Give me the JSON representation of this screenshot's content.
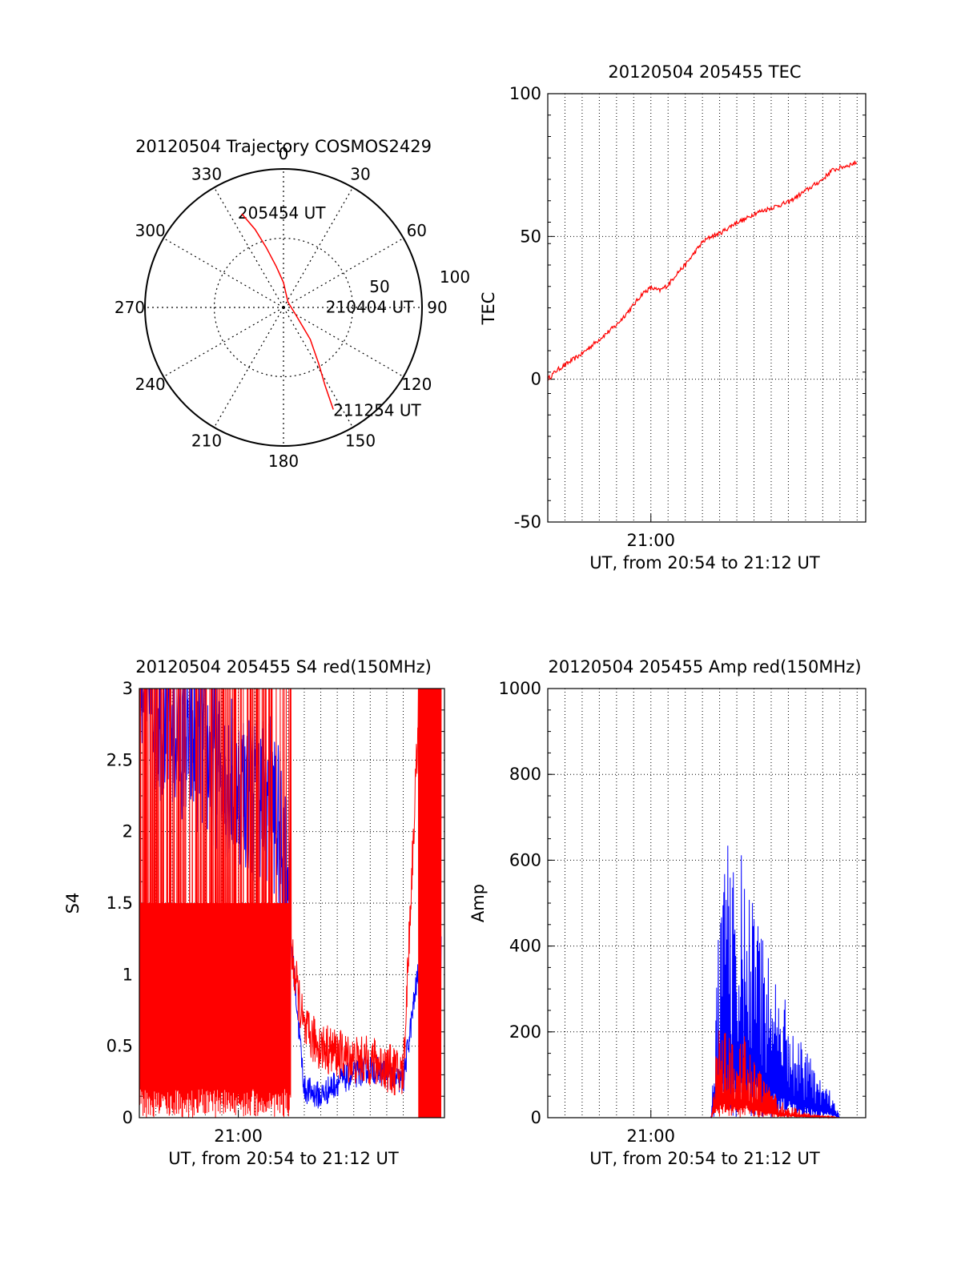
{
  "figure": {
    "colors": {
      "red": "#ff0000",
      "blue": "#0000ff",
      "axis": "#000000",
      "grid": "#000000",
      "background": "#ffffff"
    }
  },
  "chart_data": [
    {
      "id": "trajectory",
      "type": "scatter",
      "projection": "polar",
      "title": "20120504 Trajectory COSMOS2429",
      "azimuth_labels": [
        "0",
        "30",
        "60",
        "90",
        "120",
        "150",
        "180",
        "210",
        "240",
        "270",
        "300",
        "330"
      ],
      "radius_labels": [
        "50",
        "100"
      ],
      "radius_max": 100,
      "grid": true,
      "color": "#ff0000",
      "trajectory_az_r": [
        [
          336,
          74
        ],
        [
          340,
          60
        ],
        [
          344,
          45
        ],
        [
          350,
          30
        ],
        [
          0,
          18
        ],
        [
          40,
          5
        ],
        [
          120,
          10
        ],
        [
          140,
          30
        ],
        [
          148,
          48
        ],
        [
          152,
          64
        ],
        [
          154,
          82
        ]
      ],
      "annotations": [
        {
          "text": "205454 UT",
          "az": 336,
          "r": 74
        },
        {
          "text": "210404 UT",
          "az": 110,
          "r": 14
        },
        {
          "text": "211254 UT",
          "az": 154,
          "r": 82
        }
      ]
    },
    {
      "id": "tec",
      "type": "line",
      "title": "20120504 205455 TEC",
      "ylabel": "TEC",
      "xlabel": "UT, from 20:54 to 21:12 UT",
      "x_unit": "minutes after 20:54 UT",
      "xlim": [
        0,
        18.5
      ],
      "x_ticks": [
        {
          "value": 6,
          "label": "21:00"
        }
      ],
      "ylim": [
        -50,
        100
      ],
      "y_ticks": [
        -50,
        0,
        50,
        100
      ],
      "grid": true,
      "series": [
        {
          "color": "#ff0000",
          "x": [
            0.0,
            0.5,
            1.0,
            1.5,
            2.0,
            3.0,
            4.0,
            5.0,
            5.5,
            6.0,
            6.5,
            7.0,
            7.5,
            8.0,
            8.5,
            9.0,
            9.5,
            10.0,
            10.5,
            11.0,
            11.5,
            12.0,
            13.0,
            14.0,
            15.0,
            16.0,
            16.5,
            17.0,
            17.5,
            18.0
          ],
          "values": [
            0,
            3,
            5,
            7,
            9,
            14,
            19,
            26,
            30,
            32,
            31,
            33,
            37,
            40,
            44,
            48,
            50,
            51,
            53,
            55,
            56,
            58,
            60,
            62,
            66,
            70,
            73,
            74,
            75,
            76
          ]
        }
      ]
    },
    {
      "id": "s4",
      "type": "line",
      "title": "20120504 205455 S4 red(150MHz)",
      "ylabel": "S4",
      "xlabel": "UT, from 20:54 to 21:12 UT",
      "x_unit": "minutes after 20:54 UT",
      "xlim": [
        0,
        18.5
      ],
      "x_ticks": [
        {
          "value": 6,
          "label": "21:00"
        }
      ],
      "ylim": [
        0,
        3
      ],
      "y_ticks": [
        "0",
        "0.5",
        "1",
        "1.5",
        "2",
        "2.5",
        "3"
      ],
      "grid": true,
      "series": [
        {
          "color": "#0000ff",
          "x": [
            0,
            1,
            2,
            3,
            4,
            5,
            6,
            7,
            8,
            9,
            10,
            11,
            12,
            13,
            14,
            15,
            16,
            17,
            18
          ],
          "values": [
            3.0,
            2.6,
            2.5,
            2.4,
            2.3,
            2.2,
            2.1,
            2.0,
            2.0,
            1.5,
            0.2,
            0.15,
            0.25,
            0.3,
            0.35,
            0.3,
            0.25,
            1.1,
            1.2
          ]
        },
        {
          "color": "#ff0000",
          "x": [
            0,
            1,
            2,
            3,
            4,
            5,
            6,
            7,
            8,
            9,
            10,
            11,
            12,
            13,
            14,
            15,
            16,
            17,
            18
          ],
          "values": [
            1.5,
            1.5,
            1.5,
            1.5,
            1.5,
            1.5,
            1.5,
            1.5,
            1.5,
            1.3,
            0.6,
            0.5,
            0.45,
            0.4,
            0.4,
            0.35,
            0.3,
            3.0,
            3.0
          ]
        }
      ]
    },
    {
      "id": "amp",
      "type": "line",
      "title": "20120504 205455 Amp red(150MHz)",
      "ylabel": "Amp",
      "xlabel": "UT, from 20:54 to 21:12 UT",
      "x_unit": "minutes after 20:54 UT",
      "xlim": [
        0,
        18.5
      ],
      "x_ticks": [
        {
          "value": 6,
          "label": "21:00"
        }
      ],
      "ylim": [
        0,
        1000
      ],
      "y_ticks": [
        0,
        200,
        400,
        600,
        800,
        1000
      ],
      "grid": true,
      "series": [
        {
          "color": "#0000ff",
          "x": [
            0,
            9.5,
            10.0,
            10.3,
            10.6,
            11.0,
            11.5,
            12.0,
            12.5,
            13.0,
            13.5,
            14.0,
            14.5,
            15.0,
            15.5,
            16.0,
            16.5,
            17.0,
            18.5
          ],
          "values": [
            0,
            0,
            400,
            650,
            450,
            500,
            450,
            400,
            350,
            300,
            250,
            200,
            150,
            120,
            100,
            80,
            50,
            0,
            0
          ]
        },
        {
          "color": "#ff0000",
          "x": [
            0,
            9.5,
            10.0,
            10.5,
            11.0,
            11.5,
            12.0,
            13.0,
            14.0,
            15.0,
            16.0,
            17.0,
            18.5
          ],
          "values": [
            0,
            0,
            200,
            160,
            120,
            150,
            100,
            50,
            25,
            10,
            5,
            0,
            0
          ]
        }
      ]
    }
  ]
}
